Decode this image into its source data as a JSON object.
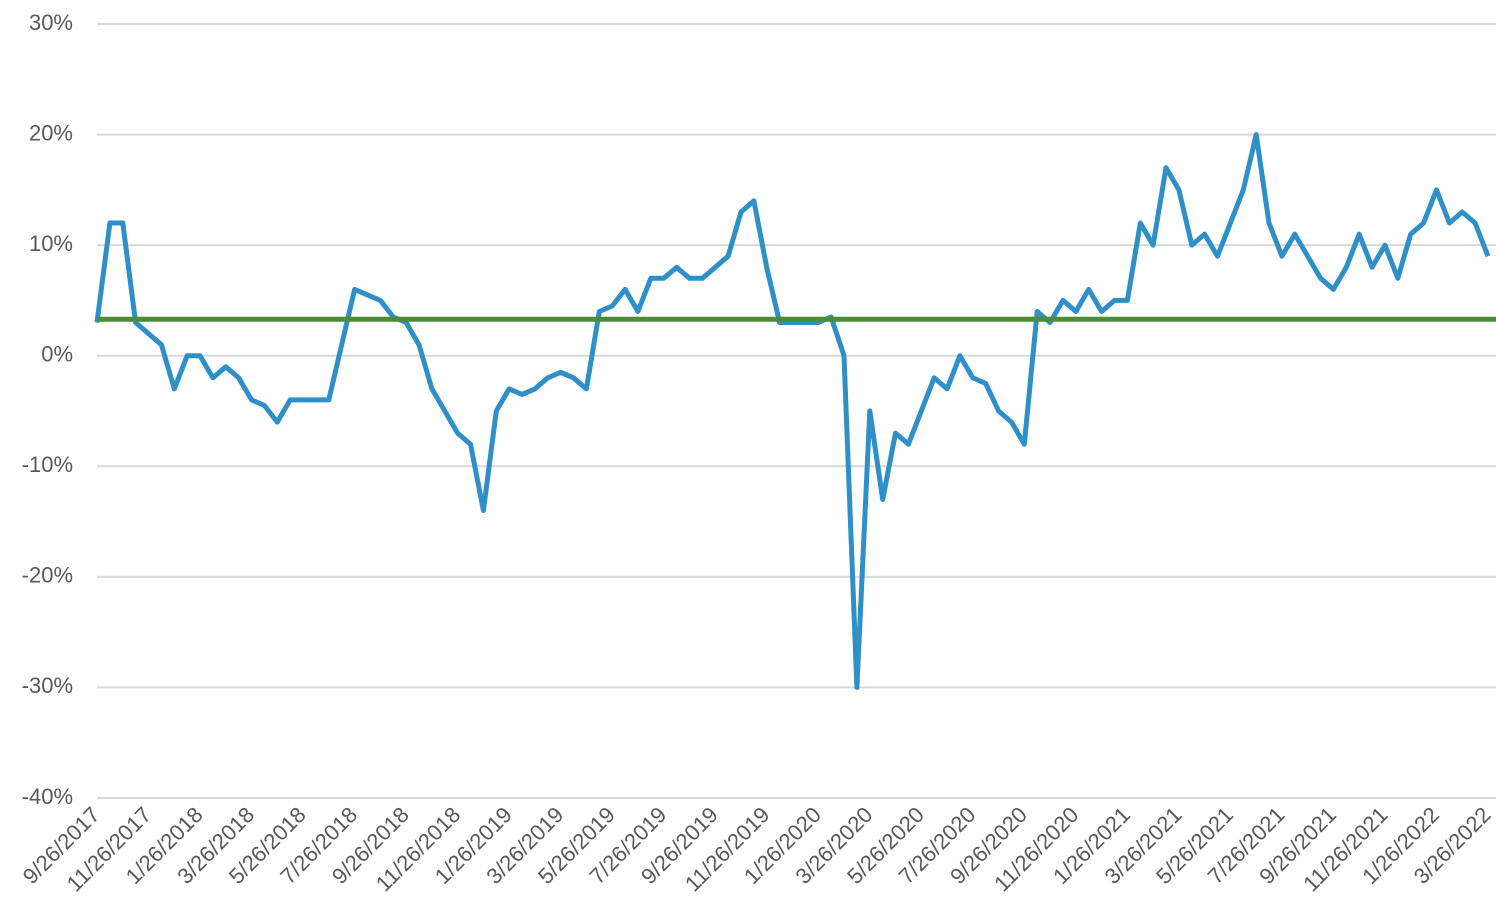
{
  "chart_data": {
    "type": "line",
    "categories": [
      "9/26/2017",
      null,
      null,
      null,
      "11/26/2017",
      null,
      null,
      null,
      "1/26/2018",
      null,
      null,
      null,
      "3/26/2018",
      null,
      null,
      null,
      "5/26/2018",
      null,
      null,
      null,
      "7/26/2018",
      null,
      null,
      null,
      "9/26/2018",
      null,
      null,
      null,
      "11/26/2018",
      null,
      null,
      null,
      "1/26/2019",
      null,
      null,
      null,
      "3/26/2019",
      null,
      null,
      null,
      "5/26/2019",
      null,
      null,
      null,
      "7/26/2019",
      null,
      null,
      null,
      "9/26/2019",
      null,
      null,
      null,
      "11/26/2019",
      null,
      null,
      null,
      "1/26/2020",
      null,
      null,
      null,
      "3/26/2020",
      null,
      null,
      null,
      "5/26/2020",
      null,
      null,
      null,
      "7/26/2020",
      null,
      null,
      null,
      "9/26/2020",
      null,
      null,
      null,
      "11/26/2020",
      null,
      null,
      null,
      "1/26/2021",
      null,
      null,
      null,
      "3/26/2021",
      null,
      null,
      null,
      "5/26/2021",
      null,
      null,
      null,
      "7/26/2021",
      null,
      null,
      null,
      "9/26/2021",
      null,
      null,
      null,
      "11/26/2021",
      null,
      null,
      null,
      "1/26/2022",
      null,
      null,
      null,
      "3/26/2022"
    ],
    "series": [
      {
        "color": "#2e8fc9",
        "values": [
          3,
          12,
          12,
          3,
          2,
          1,
          -3,
          0,
          0,
          -2,
          -1,
          -2,
          -4,
          -4.5,
          -6,
          -4,
          -4,
          -4,
          -4,
          1,
          6,
          5.5,
          5,
          3.5,
          3,
          1,
          -3,
          -5,
          -7,
          -8,
          -14,
          -5,
          -3,
          -3.5,
          -3,
          -2,
          -1.5,
          -2,
          -3,
          4,
          4.5,
          6,
          4,
          7,
          7,
          8,
          7,
          7,
          8,
          9,
          13,
          14,
          8,
          3,
          3,
          3,
          3,
          3.5,
          0,
          -30,
          -5,
          -13,
          -7,
          -8,
          -5,
          -2,
          -3,
          0,
          -2,
          -2.5,
          -5,
          -6,
          -8,
          4,
          3,
          5,
          4,
          6,
          4,
          5,
          5,
          12,
          10,
          17,
          15,
          10,
          11,
          9,
          12,
          15,
          20,
          12,
          9,
          11,
          9,
          7,
          6,
          8,
          11,
          8,
          10,
          7,
          11,
          12,
          15,
          12,
          13,
          12,
          9
        ]
      }
    ],
    "reference_line": {
      "value": 3.3,
      "color": "#4a8c3a"
    },
    "ylim": [
      -40,
      30
    ],
    "yticks": [
      {
        "value": -40,
        "label": "-40%"
      },
      {
        "value": -30,
        "label": "-30%"
      },
      {
        "value": -20,
        "label": "-20%"
      },
      {
        "value": -10,
        "label": "-10%"
      },
      {
        "value": 0,
        "label": "0%"
      },
      {
        "value": 10,
        "label": "10%"
      },
      {
        "value": 20,
        "label": "20%"
      },
      {
        "value": 30,
        "label": "30%"
      }
    ],
    "grid": true
  }
}
